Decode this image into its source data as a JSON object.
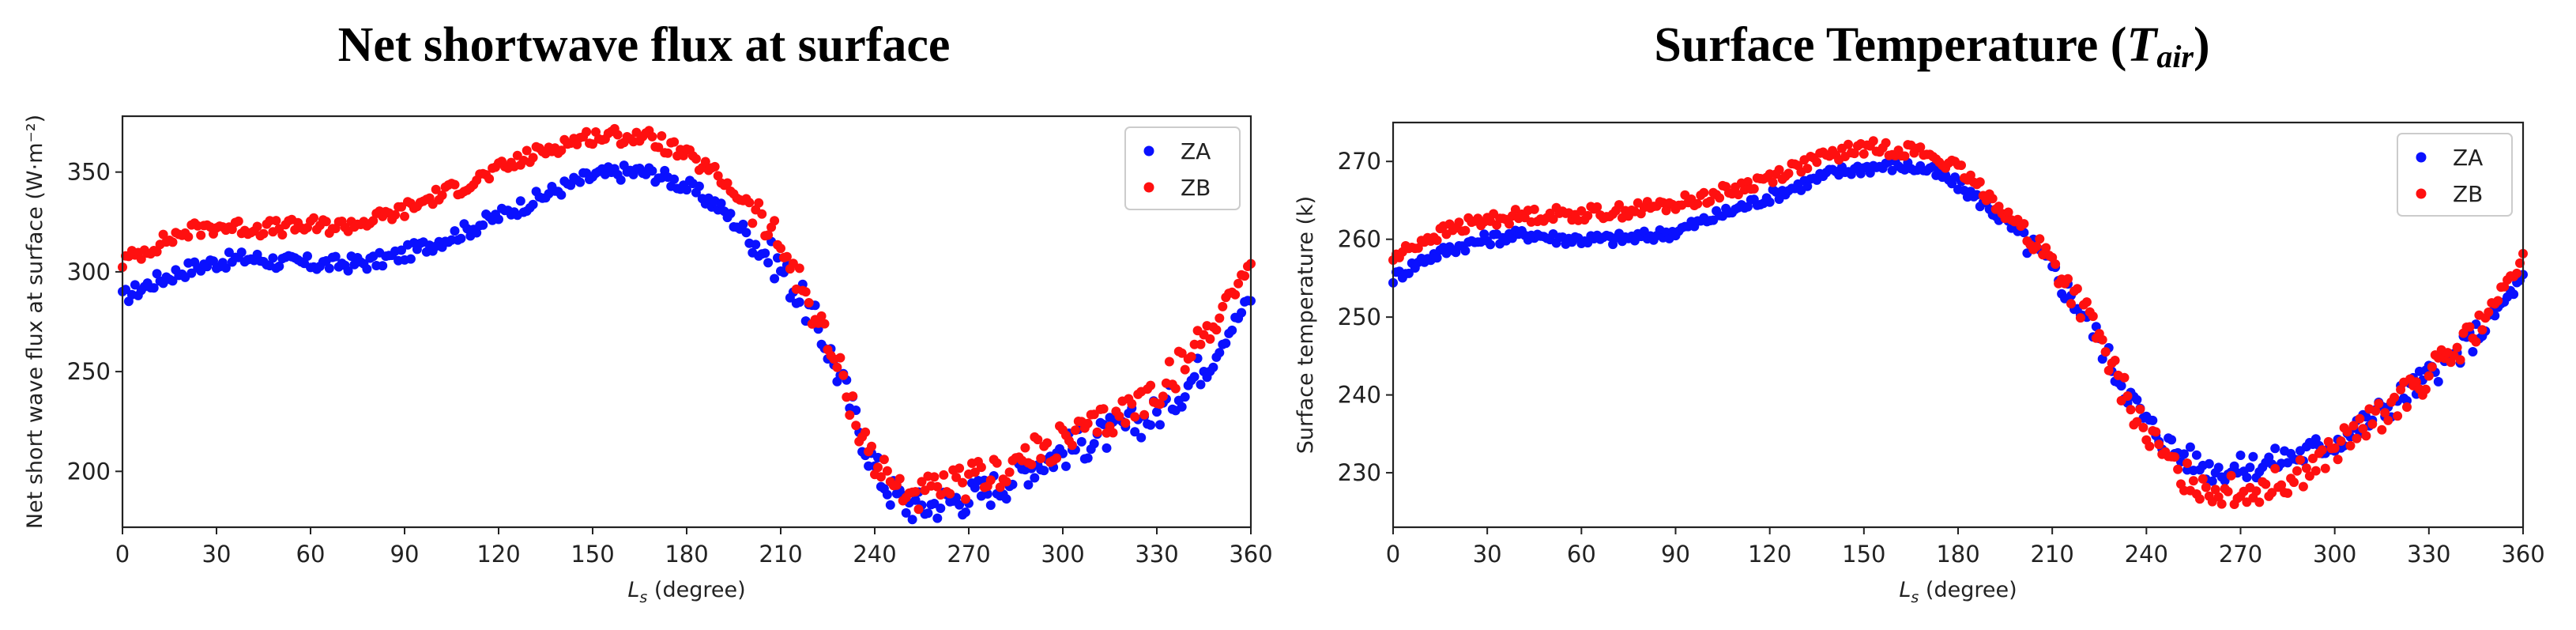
{
  "figure": {
    "colors": {
      "ZA": "#0a10ff",
      "ZB": "#ff1010",
      "axis": "#222222",
      "legend_border": "#cccccc"
    }
  },
  "chart_data": [
    {
      "type": "scatter",
      "title_main": "Net shortwave flux at surface",
      "title_symbol": "",
      "title_subscript": "",
      "title_close": "",
      "xlabel_base": "L",
      "xlabel_sub": "s",
      "xlabel_rest": " (degree)",
      "ylabel": "Net short wave flux at surface (W·m⁻²)",
      "xlim": [
        0,
        360
      ],
      "ylim": [
        172,
        378
      ],
      "xticks": [
        0,
        30,
        60,
        90,
        120,
        150,
        180,
        210,
        240,
        270,
        300,
        330,
        360
      ],
      "yticks": [
        200,
        250,
        300,
        350
      ],
      "legend": [
        "ZA",
        "ZB"
      ],
      "legend_position": "top-right",
      "series": [
        {
          "name": "ZA",
          "x": [
            0,
            10,
            20,
            30,
            40,
            50,
            60,
            70,
            80,
            90,
            100,
            110,
            120,
            130,
            140,
            150,
            160,
            165,
            170,
            180,
            190,
            200,
            210,
            215,
            220,
            225,
            230,
            235,
            240,
            245,
            250,
            255,
            260,
            270,
            280,
            290,
            300,
            310,
            320,
            330,
            340,
            350,
            360
          ],
          "y": [
            287,
            295,
            301,
            305,
            307,
            305,
            304,
            304,
            305,
            309,
            315,
            321,
            328,
            335,
            342,
            348,
            350,
            350,
            349,
            343,
            333,
            318,
            302,
            290,
            278,
            262,
            243,
            222,
            202,
            190,
            184,
            182,
            184,
            187,
            193,
            203,
            210,
            216,
            222,
            229,
            244,
            263,
            287
          ],
          "jitter": 4
        },
        {
          "name": "ZB",
          "x": [
            0,
            10,
            20,
            30,
            40,
            50,
            60,
            70,
            80,
            90,
            100,
            110,
            120,
            130,
            140,
            150,
            160,
            165,
            170,
            180,
            190,
            200,
            210,
            215,
            220,
            225,
            230,
            235,
            240,
            245,
            250,
            255,
            260,
            270,
            280,
            290,
            300,
            310,
            320,
            330,
            340,
            350,
            360
          ],
          "y": [
            305,
            313,
            320,
            323,
            322,
            322,
            323,
            323,
            326,
            331,
            338,
            344,
            351,
            358,
            364,
            368,
            368,
            368,
            366,
            358,
            348,
            333,
            313,
            298,
            282,
            264,
            245,
            223,
            205,
            195,
            190,
            188,
            190,
            195,
            200,
            208,
            215,
            222,
            230,
            240,
            257,
            280,
            305
          ],
          "jitter": 4
        }
      ]
    },
    {
      "type": "scatter",
      "title_main": "Surface Temperature (",
      "title_symbol": "T",
      "title_subscript": "air",
      "title_close": ")",
      "xlabel_base": "L",
      "xlabel_sub": "s",
      "xlabel_rest": " (degree)",
      "ylabel": "Surface temperature (k)",
      "xlim": [
        0,
        360
      ],
      "ylim": [
        223,
        275
      ],
      "xticks": [
        0,
        30,
        60,
        90,
        120,
        150,
        180,
        210,
        240,
        270,
        300,
        330,
        360
      ],
      "yticks": [
        230,
        240,
        250,
        260,
        270
      ],
      "legend": [
        "ZA",
        "ZB"
      ],
      "legend_position": "top-right",
      "series": [
        {
          "name": "ZA",
          "x": [
            0,
            10,
            20,
            30,
            40,
            45,
            50,
            60,
            70,
            80,
            90,
            100,
            110,
            120,
            130,
            140,
            150,
            160,
            165,
            170,
            180,
            190,
            200,
            210,
            220,
            225,
            230,
            240,
            250,
            260,
            270,
            280,
            290,
            300,
            310,
            320,
            330,
            340,
            350,
            360
          ],
          "y": [
            255,
            257.5,
            259,
            260,
            260.5,
            260.7,
            260.2,
            260,
            260,
            260.3,
            261,
            262.5,
            264,
            265.5,
            267,
            268.5,
            269.2,
            269.5,
            269.3,
            269,
            267,
            264,
            260.5,
            256,
            250.5,
            247,
            243,
            236.5,
            232.5,
            230.5,
            230.5,
            231.5,
            232.5,
            234,
            236.5,
            239.5,
            242.5,
            245.5,
            250,
            255
          ],
          "jitter": 0.8
        },
        {
          "name": "ZB",
          "x": [
            0,
            10,
            20,
            30,
            40,
            50,
            60,
            70,
            80,
            90,
            100,
            110,
            120,
            130,
            140,
            150,
            160,
            165,
            170,
            180,
            190,
            200,
            210,
            220,
            225,
            230,
            240,
            250,
            260,
            270,
            280,
            290,
            300,
            310,
            320,
            330,
            340,
            350,
            360
          ],
          "y": [
            257.5,
            260,
            261.5,
            262.5,
            263,
            263.2,
            263.3,
            263.5,
            264,
            264.5,
            265.5,
            266.5,
            268,
            269.5,
            270.8,
            271.8,
            271.6,
            271.5,
            271,
            269,
            265.5,
            261.5,
            257,
            251,
            247,
            242.5,
            235,
            230,
            228,
            227.5,
            228.5,
            230,
            233,
            236,
            239,
            242.5,
            246,
            251,
            257.5
          ],
          "jitter": 0.9
        }
      ]
    }
  ]
}
